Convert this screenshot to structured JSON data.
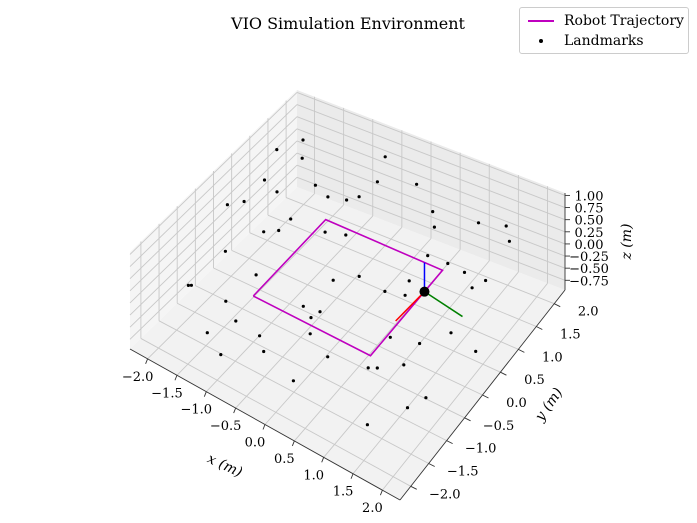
{
  "chart_data": {
    "type": "scatter3d",
    "title": "VIO Simulation Environment",
    "xlabel": "x (m)",
    "ylabel": "y (m)",
    "zlabel": "z (m)",
    "xlim": [
      -2.3,
      2.3
    ],
    "ylim": [
      -2.3,
      2.3
    ],
    "zlim": [
      -0.95,
      1.05
    ],
    "x_ticks": [
      "−2.0",
      "−1.5",
      "−1.0",
      "−0.5",
      "0.0",
      "0.5",
      "1.0",
      "1.5",
      "2.0"
    ],
    "y_ticks": [
      "−2.0",
      "−1.5",
      "−1.0",
      "−0.5",
      "0.0",
      "0.5",
      "1.0",
      "1.5",
      "2.0"
    ],
    "z_ticks": [
      "−0.75",
      "−0.50",
      "−0.25",
      "0.00",
      "0.25",
      "0.50",
      "0.75",
      "1.00"
    ],
    "x_tick_values": [
      -2.0,
      -1.5,
      -1.0,
      -0.5,
      0.0,
      0.5,
      1.0,
      1.5,
      2.0
    ],
    "y_tick_values": [
      -2.0,
      -1.5,
      -1.0,
      -0.5,
      0.0,
      0.5,
      1.0,
      1.5,
      2.0
    ],
    "z_tick_values": [
      -0.75,
      -0.5,
      -0.25,
      0.0,
      0.25,
      0.5,
      0.75,
      1.0
    ],
    "series": [
      {
        "name": "Robot Trajectory",
        "kind": "line",
        "color": "#bf00bf",
        "points": [
          [
            -1.0,
            -1.0,
            0
          ],
          [
            1.0,
            -1.0,
            0
          ],
          [
            1.0,
            1.0,
            0
          ],
          [
            -1.0,
            1.0,
            0
          ],
          [
            -1.0,
            -1.0,
            0
          ]
        ]
      },
      {
        "name": "Landmarks",
        "kind": "scatter",
        "color": "#000000",
        "points": [
          [
            -2.0,
            -0.1,
            0.6
          ],
          [
            -1.9,
            0.2,
            0.5
          ],
          [
            -1.8,
            0.6,
            0.7
          ],
          [
            -1.6,
            -0.8,
            0.4
          ],
          [
            -1.7,
            1.5,
            0.9
          ],
          [
            -1.9,
            1.8,
            0.2
          ],
          [
            -1.5,
            -1.9,
            0.6
          ],
          [
            -1.6,
            1.0,
            -0.3
          ],
          [
            -1.3,
            -1.0,
            -0.7
          ],
          [
            -1.4,
            0.3,
            0.9
          ],
          [
            -1.2,
            1.9,
            -0.4
          ],
          [
            -1.1,
            -1.6,
            0.3
          ],
          [
            -0.9,
            0.9,
            0.6
          ],
          [
            -1.0,
            -0.3,
            0.8
          ],
          [
            -0.8,
            1.6,
            0.1
          ],
          [
            -0.7,
            -1.2,
            -0.8
          ],
          [
            -0.6,
            2.0,
            0.7
          ],
          [
            -0.5,
            0.4,
            -0.5
          ],
          [
            -0.4,
            -1.8,
            0.2
          ],
          [
            -0.3,
            1.3,
            0.9
          ],
          [
            -0.2,
            -0.7,
            -0.2
          ],
          [
            0.0,
            1.9,
            0.5
          ],
          [
            0.1,
            -1.4,
            0.8
          ],
          [
            0.2,
            0.7,
            -0.6
          ],
          [
            0.3,
            -2.0,
            -0.1
          ],
          [
            0.4,
            1.7,
            0.3
          ],
          [
            0.5,
            -0.5,
            0.9
          ],
          [
            0.6,
            0.2,
            -0.9
          ],
          [
            0.7,
            -1.7,
            0.4
          ],
          [
            0.8,
            1.1,
            0.7
          ],
          [
            0.9,
            -0.9,
            -0.4
          ],
          [
            1.0,
            2.0,
            0.1
          ],
          [
            1.1,
            -0.2,
            0.6
          ],
          [
            1.2,
            1.5,
            -0.7
          ],
          [
            1.3,
            -1.3,
            0.2
          ],
          [
            1.4,
            0.5,
            0.8
          ],
          [
            1.5,
            -1.9,
            -0.3
          ],
          [
            1.6,
            1.8,
            0.5
          ],
          [
            1.7,
            -0.6,
            -0.8
          ],
          [
            1.8,
            0.9,
            0.3
          ],
          [
            1.9,
            -1.1,
            0.9
          ],
          [
            2.0,
            0.3,
            -0.5
          ],
          [
            1.9,
            1.4,
            0.7
          ],
          [
            2.0,
            -1.6,
            0.1
          ],
          [
            1.7,
            0.1,
            -0.1
          ],
          [
            1.5,
            0.8,
            0.4
          ],
          [
            1.2,
            -0.4,
            -0.6
          ],
          [
            0.8,
            0.4,
            0.2
          ],
          [
            0.5,
            1.4,
            -0.3
          ],
          [
            0.2,
            -1.1,
            0.5
          ],
          [
            -0.1,
            0.1,
            0.9
          ],
          [
            -0.4,
            -0.4,
            -0.9
          ],
          [
            -0.7,
            0.5,
            0.3
          ],
          [
            -1.0,
            -1.9,
            -0.5
          ],
          [
            -1.3,
            1.2,
            0.4
          ],
          [
            -1.6,
            -1.3,
            -0.9
          ],
          [
            -1.8,
            -1.5,
            0.1
          ],
          [
            -2.0,
            0.9,
            -0.7
          ],
          [
            -1.9,
            1.1,
            0.9
          ],
          [
            -1.2,
            -0.6,
            0.0
          ]
        ]
      }
    ],
    "pose": {
      "position": [
        1.0,
        0.5,
        0.0
      ],
      "x_axis_color": "#ff0000",
      "y_axis_color": "#008000",
      "z_axis_color": "#0000ff"
    },
    "legend": {
      "location": "top-right",
      "entries": [
        "Robot Trajectory",
        "Landmarks"
      ]
    }
  }
}
